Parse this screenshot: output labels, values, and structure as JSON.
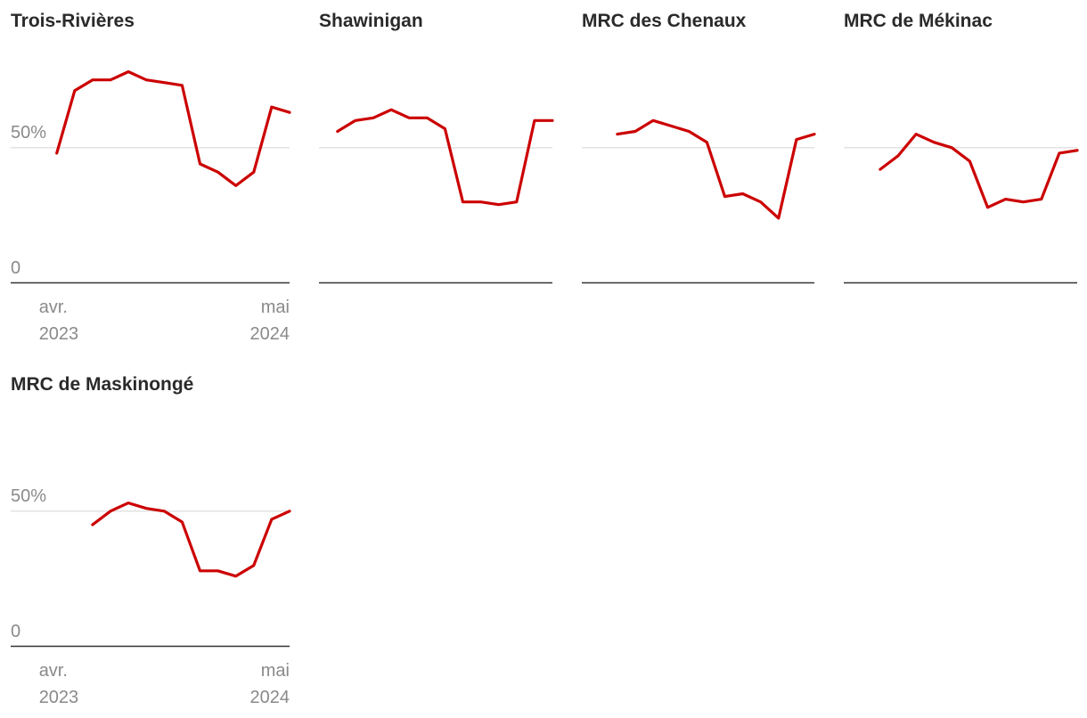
{
  "chart_data": [
    {
      "type": "line",
      "title": "Trois-Rivières",
      "ylim": [
        0,
        90
      ],
      "yticks": [
        {
          "value": 0,
          "label": "0"
        },
        {
          "value": 50,
          "label": "50%"
        }
      ],
      "xticks": [
        {
          "index": 0,
          "line1": "avr.",
          "line2": "2023"
        },
        {
          "index": 13,
          "line1": "mai",
          "line2": "2024"
        }
      ],
      "series": [
        {
          "values": [
            48,
            71,
            75,
            75,
            78,
            75,
            74,
            73,
            44,
            41,
            36,
            41,
            65,
            63
          ],
          "color": "#cc0000"
        }
      ]
    },
    {
      "type": "line",
      "title": "Shawinigan",
      "ylim": [
        0,
        90
      ],
      "series": [
        {
          "values": [
            56,
            60,
            61,
            64,
            61,
            61,
            57,
            30,
            30,
            29,
            30,
            60,
            60
          ],
          "color": "#cc0000"
        }
      ]
    },
    {
      "type": "line",
      "title": "MRC des Chenaux",
      "ylim": [
        0,
        90
      ],
      "series": [
        {
          "values": [
            55,
            56,
            60,
            58,
            56,
            52,
            32,
            33,
            30,
            24,
            53,
            55
          ],
          "color": "#cc0000"
        }
      ]
    },
    {
      "type": "line",
      "title": "MRC de Mékinac",
      "ylim": [
        0,
        90
      ],
      "series": [
        {
          "values": [
            42,
            47,
            55,
            52,
            50,
            45,
            28,
            31,
            30,
            31,
            48,
            49
          ],
          "color": "#cc0000"
        }
      ]
    },
    {
      "type": "line",
      "title": "MRC de Maskinongé",
      "ylim": [
        0,
        90
      ],
      "yticks": [
        {
          "value": 0,
          "label": "0"
        },
        {
          "value": 50,
          "label": "50%"
        }
      ],
      "xticks": [
        {
          "index": 0,
          "line1": "avr.",
          "line2": "2023"
        },
        {
          "index": 13,
          "line1": "mai",
          "line2": "2024"
        }
      ],
      "series": [
        {
          "values": [
            null,
            null,
            45,
            50,
            53,
            51,
            50,
            46,
            28,
            28,
            26,
            30,
            47,
            50
          ],
          "color": "#cc0000"
        }
      ]
    }
  ]
}
